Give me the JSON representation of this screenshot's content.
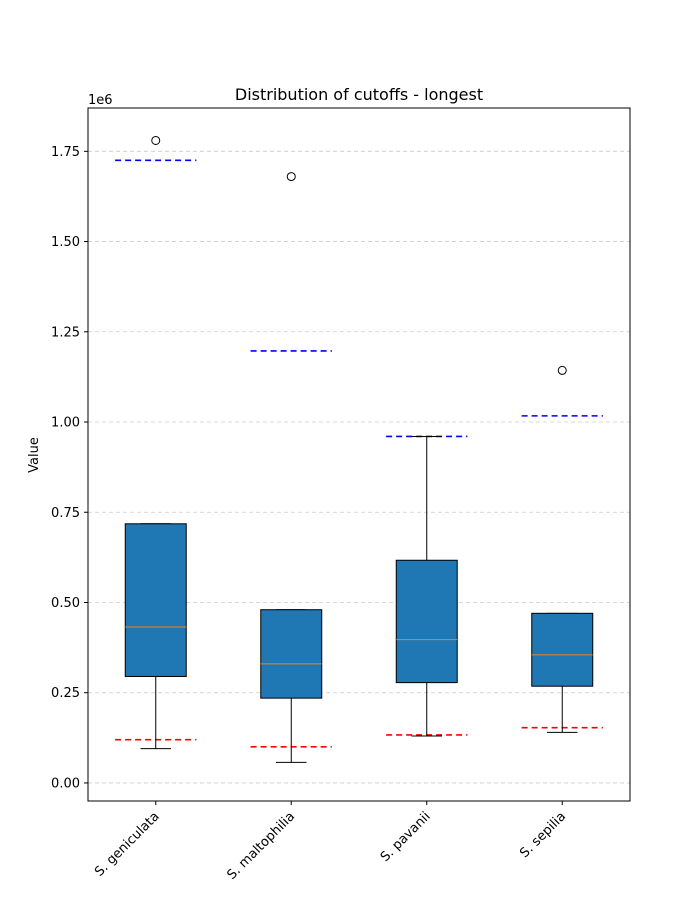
{
  "chart_data": {
    "type": "box",
    "title": "Distribution of cutoffs - longest",
    "xlabel": "",
    "ylabel": "Value",
    "y_scale_label": "1e6",
    "ylim": [
      -0.05,
      1.87
    ],
    "y_ticks": [
      0.0,
      0.25,
      0.5,
      0.75,
      1.0,
      1.25,
      1.5,
      1.75
    ],
    "y_tick_labels": [
      "0.00",
      "0.25",
      "0.50",
      "0.75",
      "1.00",
      "1.25",
      "1.50",
      "1.75"
    ],
    "grid": "horizontal dashed",
    "categories": [
      "S. geniculata",
      "S. maltophilia",
      "S. pavanii",
      "S. sepilia"
    ],
    "boxes": [
      {
        "whislo": 0.095,
        "q1": 0.295,
        "med": 0.432,
        "q3": 0.718,
        "whishi": 0.718,
        "fliers": [
          1.78
        ],
        "lower_cutoff": 0.12,
        "upper_cutoff": 1.725
      },
      {
        "whislo": 0.057,
        "q1": 0.235,
        "med": 0.33,
        "q3": 0.48,
        "whishi": 0.48,
        "fliers": [
          1.68
        ],
        "lower_cutoff": 0.1,
        "upper_cutoff": 1.197
      },
      {
        "whislo": 0.13,
        "q1": 0.278,
        "med": 0.397,
        "q3": 0.617,
        "whishi": 0.96,
        "fliers": [],
        "lower_cutoff": 0.133,
        "upper_cutoff": 0.96
      },
      {
        "whislo": 0.14,
        "q1": 0.268,
        "med": 0.355,
        "q3": 0.47,
        "whishi": 0.47,
        "fliers": [
          1.143
        ],
        "lower_cutoff": 0.153,
        "upper_cutoff": 1.017
      }
    ],
    "colors": {
      "box_fill": "#1f77b4",
      "median": "#ff7f0e",
      "lower_cutoff": "#ff0000",
      "upper_cutoff": "#0000ff",
      "grid": "#cccccc"
    }
  }
}
